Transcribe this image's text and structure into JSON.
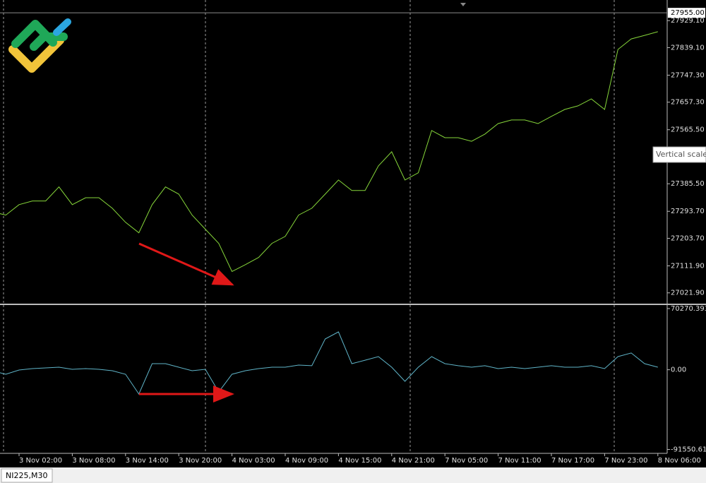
{
  "tab": "NI225,M30",
  "tooltip": "Vertical scale",
  "chart_data": [
    {
      "type": "line",
      "color": "#86d63a",
      "values": [
        27292,
        27281,
        27316,
        27328,
        27328,
        27375,
        27316,
        27339,
        27339,
        27304,
        27257,
        27222,
        27316,
        27375,
        27351,
        27281,
        27234,
        27187,
        27093,
        27116,
        27140,
        27187,
        27210,
        27281,
        27304,
        27351,
        27398,
        27363,
        27363,
        27445,
        27492,
        27398,
        27422,
        27563,
        27539,
        27539,
        27527,
        27551,
        27586,
        27598,
        27598,
        27586,
        27610,
        27633,
        27645,
        27668,
        27633,
        27833,
        27868,
        27880,
        27892
      ],
      "ylim": [
        26986,
        27986
      ],
      "yticks": [
        {
          "value": 27929.1,
          "label": "27929.10"
        },
        {
          "value": 27839.1,
          "label": "27839.10"
        },
        {
          "value": 27747.3,
          "label": "27747.30"
        },
        {
          "value": 27657.3,
          "label": "27657.30"
        },
        {
          "value": 27565.5,
          "label": "27565.50"
        },
        {
          "value": 27385.5,
          "label": "27385.50"
        },
        {
          "value": 27293.7,
          "label": "27293.70"
        },
        {
          "value": 27203.7,
          "label": "27203.70"
        },
        {
          "value": 27111.9,
          "label": "27111.90"
        },
        {
          "value": 27021.9,
          "label": "27021.90"
        }
      ],
      "price_line": {
        "value": 27955,
        "label": "27955.00"
      }
    },
    {
      "type": "line",
      "color": "#5fb4c8",
      "categories": [
        null,
        null,
        "3 Nov 02:00",
        null,
        null,
        null,
        "3 Nov 08:00",
        null,
        null,
        null,
        "3 Nov 14:00",
        null,
        null,
        null,
        "3 Nov 20:00",
        null,
        null,
        null,
        "4 Nov 03:00",
        null,
        null,
        null,
        "4 Nov 09:00",
        null,
        null,
        null,
        "4 Nov 15:00",
        null,
        null,
        null,
        "4 Nov 21:00",
        null,
        null,
        null,
        "7 Nov 05:00",
        null,
        null,
        null,
        "7 Nov 11:00",
        null,
        null,
        null,
        "7 Nov 17:00",
        null,
        null,
        null,
        "7 Nov 23:00",
        null,
        null,
        null,
        "8 Nov 06:00"
      ],
      "values": [
        -1100,
        -5200,
        -300,
        1300,
        2100,
        2900,
        500,
        1300,
        500,
        -1100,
        -5200,
        -27900,
        7000,
        7000,
        2900,
        -1100,
        500,
        -25500,
        -5200,
        -1100,
        1300,
        2900,
        2900,
        5400,
        4600,
        35400,
        43500,
        7000,
        11000,
        15100,
        2900,
        -13300,
        2900,
        15100,
        7000,
        4600,
        2900,
        4600,
        1300,
        2900,
        1300,
        2900,
        4600,
        2900,
        2900,
        4600,
        1300,
        15100,
        19200,
        7000,
        2900
      ],
      "ylim": [
        -96000,
        74300
      ],
      "yticks": [
        70270.3932,
        {
          "value": 0,
          "label": "0.00"
        },
        -91550.6197
      ]
    }
  ]
}
